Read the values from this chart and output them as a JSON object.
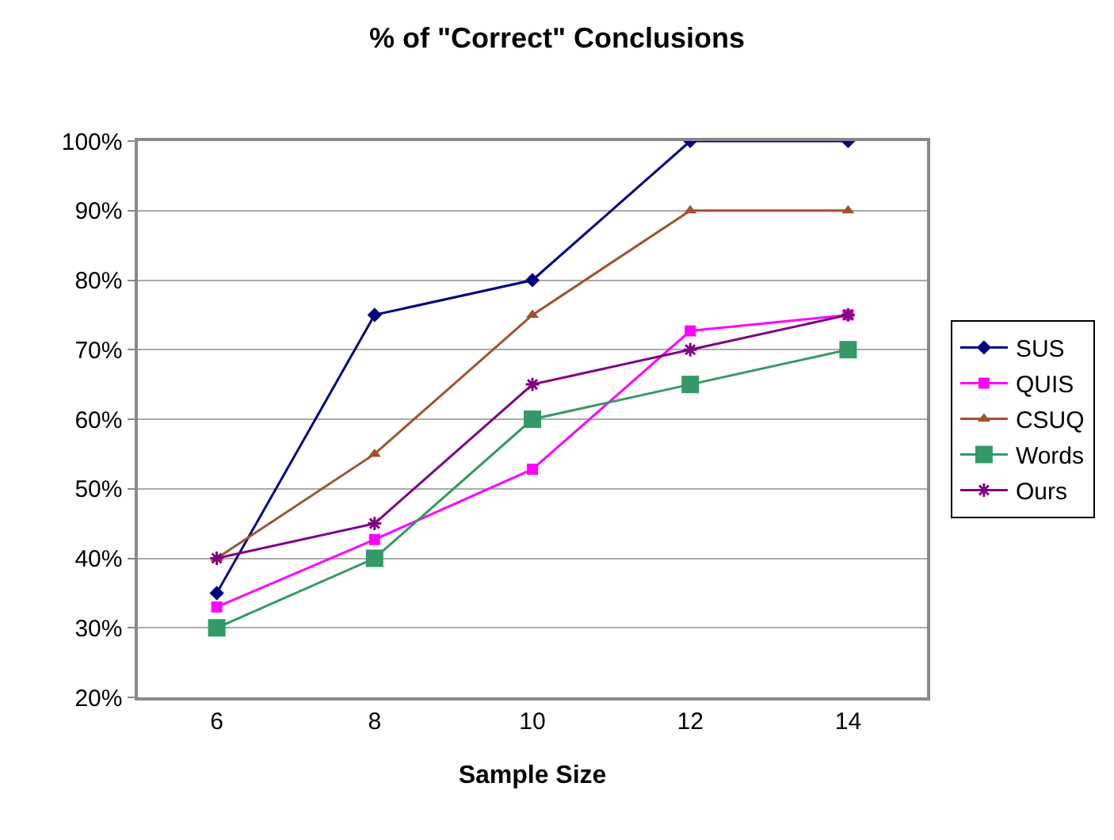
{
  "chart_data": {
    "type": "line",
    "title": "% of \"Correct\" Conclusions",
    "xlabel": "Sample Size",
    "categories": [
      "6",
      "8",
      "10",
      "12",
      "14"
    ],
    "series": [
      {
        "name": "SUS",
        "color": "#000080",
        "marker": "diamond",
        "values": [
          35,
          75,
          80,
          100,
          100
        ]
      },
      {
        "name": "QUIS",
        "color": "#ff00ff",
        "marker": "square",
        "values": [
          33,
          42.7,
          52.8,
          72.7,
          75
        ]
      },
      {
        "name": "CSUQ",
        "color": "#a0522d",
        "marker": "triangle",
        "values": [
          40,
          55,
          75,
          90,
          90
        ]
      },
      {
        "name": "Words",
        "color": "#339966",
        "marker": "square",
        "values": [
          30,
          40,
          60,
          65,
          70
        ]
      },
      {
        "name": "Ours",
        "color": "#800080",
        "marker": "cross",
        "values": [
          40,
          45,
          65,
          70,
          75
        ]
      }
    ],
    "ylim": [
      20,
      100
    ],
    "yticks": [
      {
        "value": 20,
        "label": "20%"
      },
      {
        "value": 30,
        "label": "30%"
      },
      {
        "value": 40,
        "label": "40%"
      },
      {
        "value": 50,
        "label": "50%"
      },
      {
        "value": 60,
        "label": "60%"
      },
      {
        "value": 70,
        "label": "70%"
      },
      {
        "value": 80,
        "label": "80%"
      },
      {
        "value": 90,
        "label": "90%"
      },
      {
        "value": 100,
        "label": "100%"
      }
    ],
    "grid": "y",
    "legend": "right",
    "line_style": "solid"
  }
}
